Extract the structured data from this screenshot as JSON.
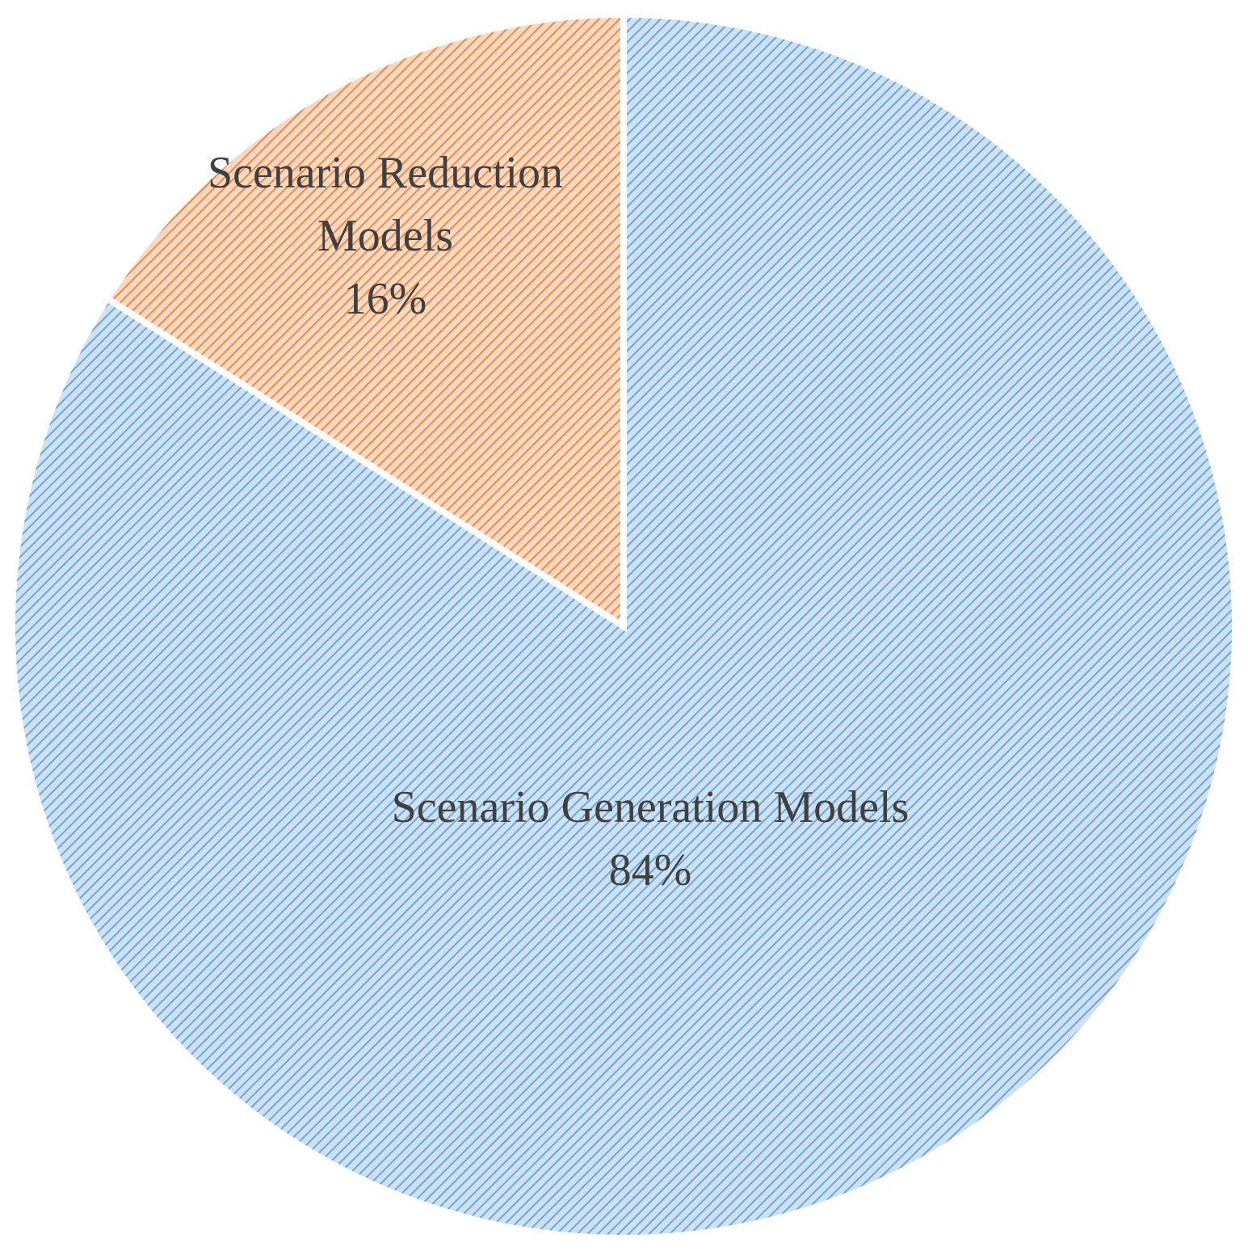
{
  "chart_data": {
    "type": "pie",
    "categories": [
      "Scenario Generation Models",
      "Scenario Reduction Models"
    ],
    "values": [
      84,
      16
    ],
    "value_labels": [
      "84%",
      "16%"
    ],
    "colors": [
      "#5b9bd5",
      "#ed7d31"
    ]
  }
}
